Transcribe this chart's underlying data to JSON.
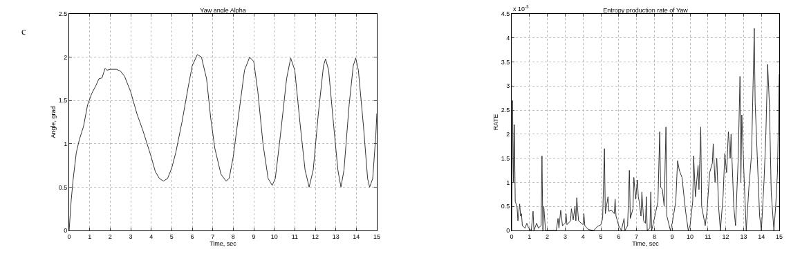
{
  "chart_data": [
    {
      "type": "line",
      "title": "Yaw angle Alpha",
      "xlabel": "Time, sec",
      "ylabel": "Angle, grad",
      "annotations": [
        "c"
      ],
      "grid": true,
      "xlim": [
        0,
        15
      ],
      "xticks": [
        0,
        1,
        2,
        3,
        4,
        5,
        6,
        7,
        8,
        9,
        10,
        11,
        12,
        13,
        14,
        15
      ],
      "ylim": [
        0,
        2.5
      ],
      "yticks": [
        0,
        0.5,
        1,
        1.5,
        2,
        2.5
      ],
      "series": [
        {
          "color": "#333333",
          "x": [
            0,
            0.1,
            0.2,
            0.35,
            0.5,
            0.7,
            0.9,
            1.1,
            1.3,
            1.45,
            1.6,
            1.75,
            1.85,
            2.0,
            2.3,
            2.5,
            2.7,
            3.0,
            3.3,
            3.6,
            4.0,
            4.2,
            4.4,
            4.6,
            4.8,
            5.0,
            5.2,
            5.5,
            5.8,
            6.0,
            6.25,
            6.45,
            6.7,
            6.9,
            7.1,
            7.4,
            7.65,
            7.8,
            8.0,
            8.3,
            8.55,
            8.8,
            9.0,
            9.2,
            9.45,
            9.7,
            9.9,
            10.05,
            10.3,
            10.6,
            10.8,
            11.0,
            11.25,
            11.5,
            11.7,
            11.9,
            12.15,
            12.4,
            12.5,
            12.65,
            12.9,
            13.1,
            13.25,
            13.4,
            13.65,
            13.85,
            13.97,
            14.1,
            14.35,
            14.55,
            14.65,
            14.8,
            14.95,
            15.0
          ],
          "values": [
            0,
            0.35,
            0.6,
            0.9,
            1.05,
            1.2,
            1.45,
            1.58,
            1.67,
            1.75,
            1.76,
            1.87,
            1.85,
            1.86,
            1.86,
            1.84,
            1.78,
            1.6,
            1.35,
            1.15,
            0.85,
            0.68,
            0.6,
            0.57,
            0.6,
            0.72,
            0.9,
            1.25,
            1.65,
            1.9,
            2.03,
            2.0,
            1.75,
            1.3,
            0.95,
            0.65,
            0.57,
            0.6,
            0.85,
            1.4,
            1.85,
            2.0,
            1.95,
            1.6,
            1.0,
            0.6,
            0.52,
            0.6,
            1.1,
            1.75,
            1.99,
            1.85,
            1.25,
            0.7,
            0.5,
            0.7,
            1.35,
            1.9,
            1.98,
            1.85,
            1.2,
            0.7,
            0.5,
            0.7,
            1.45,
            1.9,
            1.99,
            1.85,
            1.2,
            0.6,
            0.5,
            0.6,
            1.1,
            1.35
          ]
        }
      ]
    },
    {
      "type": "line",
      "title": "Entropy production rate of Yaw",
      "xlabel": "Time, sec",
      "ylabel": "RATE",
      "annotations": [
        "x 10$^{-3}$"
      ],
      "grid": true,
      "xlim": [
        0,
        15
      ],
      "xticks": [
        0,
        1,
        2,
        3,
        4,
        5,
        6,
        7,
        8,
        9,
        10,
        11,
        12,
        13,
        14,
        15
      ],
      "ylim": [
        0,
        4.5
      ],
      "yticks": [
        0,
        0.5,
        1,
        1.5,
        2,
        2.5,
        3,
        3.5,
        4,
        4.5
      ],
      "series": [
        {
          "color": "#333333",
          "x": [
            0,
            0.05,
            0.1,
            0.15,
            0.2,
            0.3,
            0.35,
            0.45,
            0.5,
            0.55,
            0.6,
            0.75,
            0.85,
            0.95,
            1.1,
            1.2,
            1.25,
            1.4,
            1.5,
            1.65,
            1.7,
            1.75,
            1.8,
            1.9,
            2.0,
            2.5,
            2.6,
            2.65,
            2.75,
            2.85,
            3.0,
            3.05,
            3.1,
            3.3,
            3.35,
            3.45,
            3.55,
            3.6,
            3.65,
            3.75,
            4.0,
            4.05,
            4.1,
            4.3,
            4.6,
            4.8,
            5.0,
            5.1,
            5.2,
            5.25,
            5.4,
            5.45,
            5.6,
            5.75,
            5.8,
            5.85,
            6.0,
            6.15,
            6.3,
            6.35,
            6.5,
            6.6,
            6.65,
            6.8,
            6.85,
            6.95,
            7.05,
            7.1,
            7.15,
            7.25,
            7.3,
            7.4,
            7.5,
            7.55,
            7.6,
            7.75,
            7.8,
            7.85,
            8.0,
            8.2,
            8.3,
            8.35,
            8.45,
            8.55,
            8.65,
            8.7,
            8.9,
            9.0,
            9.2,
            9.3,
            9.4,
            9.55,
            9.75,
            9.9,
            10.0,
            10.15,
            10.2,
            10.3,
            10.45,
            10.5,
            10.6,
            10.65,
            10.85,
            10.95,
            11.1,
            11.25,
            11.3,
            11.4,
            11.5,
            11.6,
            11.7,
            11.85,
            11.95,
            12.05,
            12.15,
            12.25,
            12.3,
            12.45,
            12.55,
            12.7,
            12.8,
            12.85,
            12.9,
            13.05,
            13.15,
            13.3,
            13.45,
            13.6,
            13.65,
            13.75,
            13.9,
            14.0,
            14.15,
            14.25,
            14.35,
            14.45,
            14.55,
            14.7,
            14.8,
            14.9,
            15.0
          ],
          "values": [
            0,
            2.7,
            1.0,
            2.2,
            0.6,
            0.5,
            0.2,
            0.55,
            0.3,
            0.35,
            0.1,
            0.05,
            0.15,
            0.05,
            0,
            0.4,
            0,
            0.15,
            0.05,
            0.1,
            1.55,
            0,
            0.5,
            0,
            0,
            0,
            0.25,
            0.05,
            0.42,
            0.1,
            0.15,
            0.35,
            0.12,
            0.2,
            0.45,
            0.22,
            0.5,
            0.2,
            0.68,
            0.2,
            0.12,
            0.35,
            0.1,
            0.02,
            0,
            0.08,
            0.12,
            0.25,
            1.7,
            0.35,
            0.7,
            0.4,
            0.42,
            0.35,
            0.65,
            0.3,
            0.1,
            0,
            0.25,
            0,
            0.1,
            1.25,
            0.25,
            0.45,
            1.1,
            0.65,
            1.05,
            0.7,
            0.6,
            0.3,
            0.8,
            0.2,
            0.15,
            0.7,
            0,
            0.05,
            0.8,
            0,
            0.25,
            0.6,
            2.05,
            0.9,
            0.85,
            0.5,
            2.15,
            0.3,
            0,
            0.15,
            0.6,
            1.45,
            1.25,
            1.1,
            0.4,
            0,
            0.1,
            0.6,
            1.55,
            0.7,
            1.35,
            0.85,
            2.15,
            0.5,
            0.1,
            0.4,
            1.2,
            1.4,
            1.8,
            1.0,
            1.5,
            0.5,
            0,
            0.7,
            1.6,
            1.2,
            2.05,
            1.5,
            2.0,
            0.5,
            0.1,
            1.5,
            3.2,
            1.0,
            2.4,
            0.9,
            0,
            0.9,
            1.6,
            4.2,
            2.65,
            1.7,
            0.3,
            0,
            1.05,
            2.0,
            3.45,
            2.6,
            0.8,
            0,
            0.5,
            1.2,
            3.25
          ]
        }
      ]
    }
  ]
}
